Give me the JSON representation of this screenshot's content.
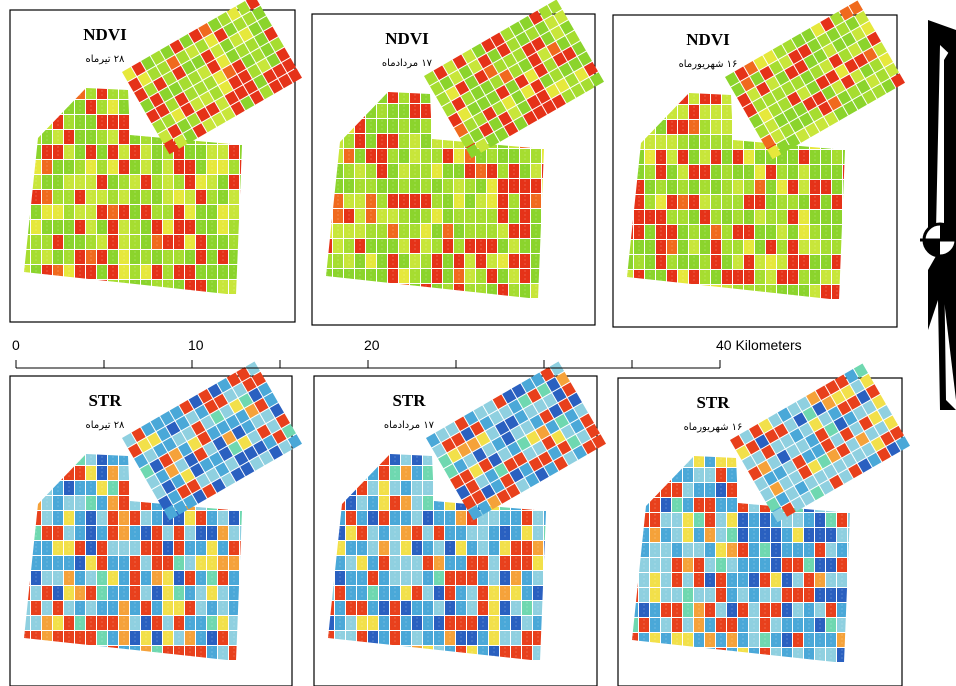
{
  "panels": [
    {
      "title": "NDVI",
      "date": "۲۸ تیرماه"
    },
    {
      "title": "NDVI",
      "date": "۱۷ مردادماه"
    },
    {
      "title": "NDVI",
      "date": "۱۶ شهریورماه"
    },
    {
      "title": "STR",
      "date": "۲۸ تیرماه"
    },
    {
      "title": "STR",
      "date": "۱۷ مردادماه"
    },
    {
      "title": "STR",
      "date": "۱۶ شهریورماه"
    }
  ],
  "scale_bar": {
    "labels": [
      "0",
      "10",
      "20",
      "40"
    ],
    "unit": "Kilometers"
  }
}
